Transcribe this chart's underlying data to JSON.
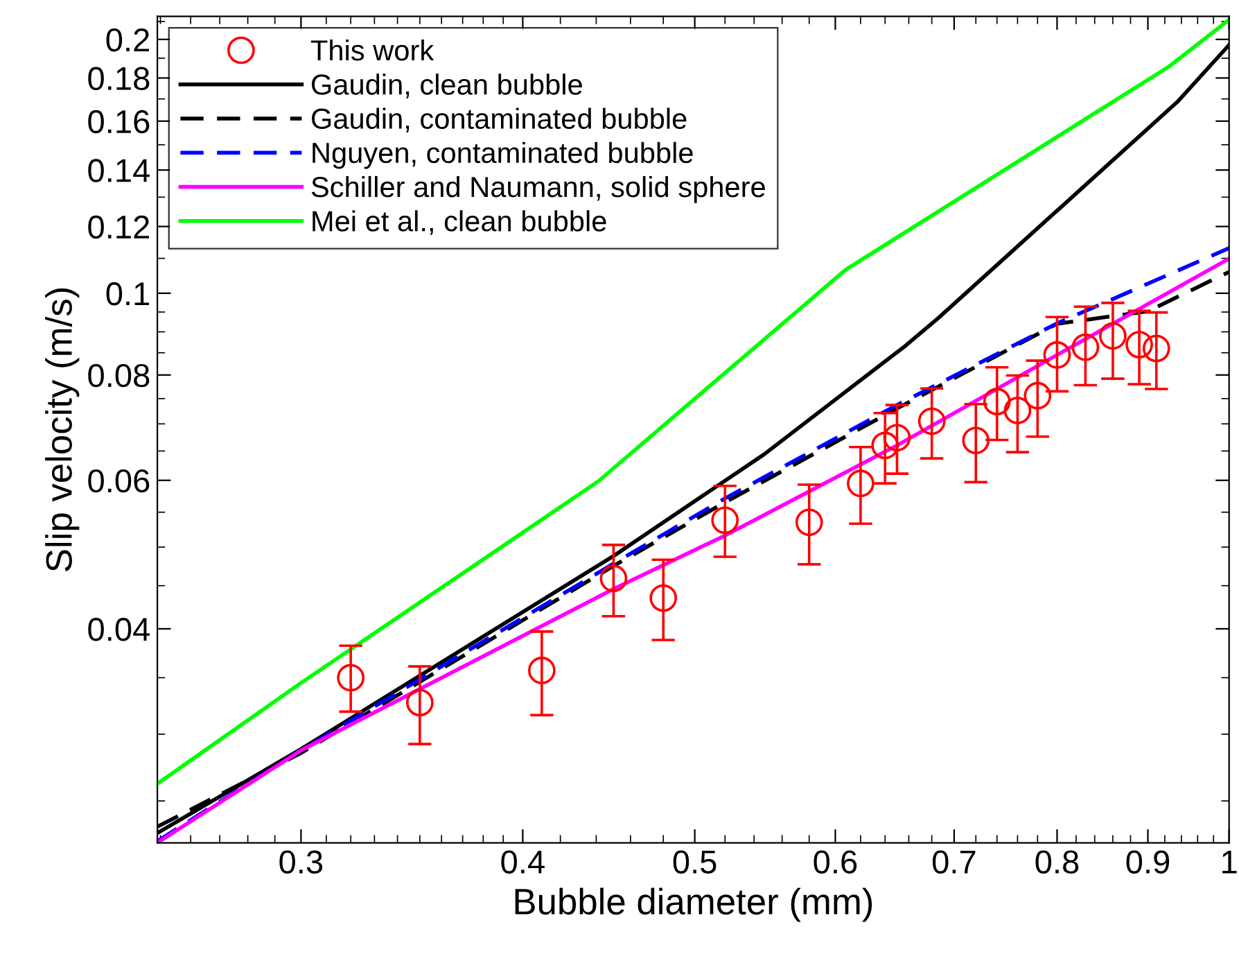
{
  "chart_data": {
    "type": "line",
    "xlabel": "Bubble diameter (mm)",
    "ylabel": "Slip velocity (m/s)",
    "log": "xy",
    "grid": false,
    "legend": "top left",
    "xlim": [
      0.249,
      1.0
    ],
    "ylim": [
      0.0223,
      0.213
    ],
    "xticks": [
      {
        "value": 0.25,
        "label": null
      },
      {
        "value": 0.26,
        "label": null
      },
      {
        "value": 0.27,
        "label": null
      },
      {
        "value": 0.28,
        "label": null
      },
      {
        "value": 0.29,
        "label": null
      },
      0.3,
      {
        "value": 0.31,
        "label": null
      },
      {
        "value": 0.32,
        "label": null
      },
      {
        "value": 0.33,
        "label": null
      },
      {
        "value": 0.34,
        "label": null
      },
      {
        "value": 0.35,
        "label": null
      },
      {
        "value": 0.36,
        "label": null
      },
      {
        "value": 0.37,
        "label": null
      },
      {
        "value": 0.38,
        "label": null
      },
      {
        "value": 0.39,
        "label": null
      },
      0.4,
      {
        "value": 0.42,
        "label": null
      },
      {
        "value": 0.44,
        "label": null
      },
      {
        "value": 0.46,
        "label": null
      },
      {
        "value": 0.48,
        "label": null
      },
      0.5,
      {
        "value": 0.52,
        "label": null
      },
      {
        "value": 0.54,
        "label": null
      },
      {
        "value": 0.56,
        "label": null
      },
      {
        "value": 0.58,
        "label": null
      },
      0.6,
      {
        "value": 0.62,
        "label": null
      },
      {
        "value": 0.64,
        "label": null
      },
      {
        "value": 0.66,
        "label": null
      },
      {
        "value": 0.68,
        "label": null
      },
      0.7,
      {
        "value": 0.72,
        "label": null
      },
      {
        "value": 0.74,
        "label": null
      },
      {
        "value": 0.76,
        "label": null
      },
      {
        "value": 0.78,
        "label": null
      },
      0.8,
      {
        "value": 0.82,
        "label": null
      },
      {
        "value": 0.84,
        "label": null
      },
      {
        "value": 0.86,
        "label": null
      },
      {
        "value": 0.88,
        "label": null
      },
      0.9,
      {
        "value": 0.92,
        "label": null
      },
      {
        "value": 0.94,
        "label": null
      },
      {
        "value": 0.96,
        "label": null
      },
      {
        "value": 0.98,
        "label": null
      },
      1
    ],
    "yticks": [
      {
        "value": 0.025,
        "label": null
      },
      {
        "value": 0.03,
        "label": null
      },
      {
        "value": 0.035,
        "label": null
      },
      0.04,
      {
        "value": 0.045,
        "label": null
      },
      {
        "value": 0.05,
        "label": null
      },
      {
        "value": 0.055,
        "label": null
      },
      0.06,
      {
        "value": 0.065,
        "label": null
      },
      {
        "value": 0.07,
        "label": null
      },
      {
        "value": 0.075,
        "label": null
      },
      0.08,
      {
        "value": 0.085,
        "label": null
      },
      {
        "value": 0.09,
        "label": null
      },
      {
        "value": 0.095,
        "label": null
      },
      0.1,
      {
        "value": 0.11,
        "label": null
      },
      0.12,
      {
        "value": 0.13,
        "label": null
      },
      0.14,
      {
        "value": 0.15,
        "label": null
      },
      0.16,
      {
        "value": 0.17,
        "label": null
      },
      0.18,
      {
        "value": 0.19,
        "label": null
      },
      0.2,
      {
        "value": 0.21,
        "label": null
      }
    ],
    "series": [
      {
        "name": "This work",
        "type": "scatter",
        "marker": "circle",
        "color": "#ff0000",
        "x": [
          0.32,
          0.35,
          0.41,
          0.45,
          0.48,
          0.52,
          0.58,
          0.62,
          0.64,
          0.65,
          0.68,
          0.72,
          0.74,
          0.76,
          0.78,
          0.8,
          0.83,
          0.86,
          0.89,
          0.91
        ],
        "values": [
          0.035,
          0.0327,
          0.0357,
          0.0459,
          0.0435,
          0.0538,
          0.0535,
          0.0595,
          0.066,
          0.0674,
          0.0705,
          0.0669,
          0.0744,
          0.0726,
          0.0756,
          0.0845,
          0.0863,
          0.089,
          0.0869,
          0.086
        ],
        "errors": [
          [
            0.0319,
            0.0382
          ],
          [
            0.0292,
            0.0361
          ],
          [
            0.0316,
            0.0397
          ],
          [
            0.0414,
            0.0503
          ],
          [
            0.0388,
            0.0483
          ],
          [
            0.0487,
            0.0591
          ],
          [
            0.0477,
            0.0593
          ],
          [
            0.0533,
            0.0657
          ],
          [
            0.0595,
            0.0721
          ],
          [
            0.0611,
            0.0737
          ],
          [
            0.0637,
            0.0771
          ],
          [
            0.0597,
            0.0739
          ],
          [
            0.067,
            0.0817
          ],
          [
            0.0648,
            0.0799
          ],
          [
            0.0676,
            0.0832
          ],
          [
            0.0765,
            0.0937
          ],
          [
            0.0778,
            0.0964
          ],
          [
            0.0792,
            0.0974
          ],
          [
            0.078,
            0.0953
          ],
          [
            0.077,
            0.0949
          ]
        ]
      },
      {
        "name": "Gaudin, clean bubble",
        "line_style": "solid",
        "color": "#000000",
        "x": [
          0.249,
          0.3,
          0.45,
          0.547,
          0.657,
          0.686,
          0.935,
          1.0
        ],
        "values": [
          0.0229,
          0.0288,
          0.0488,
          0.0644,
          0.0866,
          0.0935,
          0.1686,
          0.197
        ]
      },
      {
        "name": "Gaudin, contaminated bubble",
        "line_style": "dashed",
        "color": "#000000",
        "x": [
          0.249,
          0.3,
          0.45,
          0.52,
          0.65,
          0.8,
          0.9,
          1.0
        ],
        "values": [
          0.0233,
          0.0285,
          0.0475,
          0.0565,
          0.073,
          0.092,
          0.0952,
          0.106
        ]
      },
      {
        "name": "Nguyen, contaminated bubble",
        "line_style": "dashed",
        "color": "#0000ff",
        "x": [
          0.249,
          0.3,
          0.45,
          0.52,
          0.65,
          0.8,
          1.0
        ],
        "values": [
          0.0224,
          0.0287,
          0.0478,
          0.0571,
          0.0737,
          0.0921,
          0.1131
        ]
      },
      {
        "name": "Schiller and Naumann, solid sphere",
        "line_style": "solid",
        "color": "#ff00ff",
        "x": [
          0.249,
          0.3,
          0.45,
          0.52,
          0.65,
          0.8,
          1.0
        ],
        "values": [
          0.0223,
          0.0287,
          0.0446,
          0.0516,
          0.066,
          0.0845,
          0.1099
        ]
      },
      {
        "name": "Mei et al., clean bubble",
        "line_style": "solid",
        "color": "#00ff00",
        "x": [
          0.249,
          0.3,
          0.441,
          0.608,
          0.925,
          1.0
        ],
        "values": [
          0.0262,
          0.0345,
          0.0598,
          0.1066,
          0.1857,
          0.211
        ]
      }
    ]
  }
}
